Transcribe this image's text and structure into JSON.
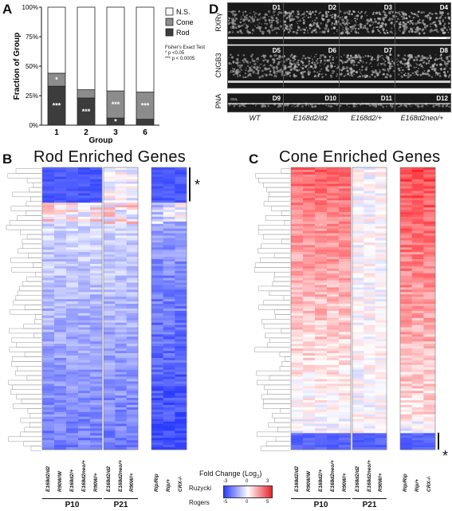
{
  "panels": {
    "a": "A",
    "b": "B",
    "c": "C",
    "d": "D"
  },
  "colors": {
    "ns": "#ffffff",
    "cone": "#8c8c8c",
    "rod": "#3c3c3c",
    "blue": "#2b3cff",
    "red": "#e8232a"
  },
  "chart_data": {
    "type": "bar",
    "stacked": true,
    "categories": [
      "1",
      "2",
      "3",
      "6"
    ],
    "xlabel": "Group",
    "ylabel": "Fraction of Group",
    "ytick_labels": [
      "0%",
      "25%",
      "50%",
      "75%",
      "100%"
    ],
    "ylim": [
      0,
      100
    ],
    "legend_position": "top-right",
    "series": [
      {
        "name": "Rod",
        "values": [
          33,
          23,
          6,
          5
        ]
      },
      {
        "name": "Cone",
        "values": [
          11,
          7,
          23,
          23
        ]
      },
      {
        "name": "N.S.",
        "values": [
          56,
          70,
          71,
          72
        ]
      }
    ],
    "annotations": [
      {
        "bar": 0,
        "segment": "Cone",
        "text": "*"
      },
      {
        "bar": 0,
        "segment": "Rod",
        "text": "***"
      },
      {
        "bar": 1,
        "segment": "Rod",
        "text": "***"
      },
      {
        "bar": 2,
        "segment": "Cone",
        "text": "***"
      },
      {
        "bar": 2,
        "segment": "Rod",
        "text": "*"
      },
      {
        "bar": 3,
        "segment": "Cone",
        "text": "***"
      }
    ],
    "stats_note": [
      "Fisher's Exact Test",
      "* p <0.05",
      "*** p < 0.0005"
    ]
  },
  "panel_d": {
    "rows": [
      "RXRγ",
      "CNGB3",
      "PNA"
    ],
    "genotypes": [
      "WT",
      "E168d2/d2",
      "E168d2/+",
      "E168d2neo/+"
    ],
    "tiles": [
      "D1",
      "D2",
      "D3",
      "D4",
      "D5",
      "D6",
      "D7",
      "D8",
      "D9",
      "D10",
      "D11",
      "D12"
    ],
    "onl": "ONL"
  },
  "panel_b": {
    "title": "Rod Enriched Genes",
    "asterisk": "*",
    "columns_p10": [
      "E168d2/d2",
      "R90W/W",
      "E168d2/+",
      "E168d2neo/+",
      "R90W/+"
    ],
    "columns_p21": [
      "E168d2/d2",
      "E168d2neo/+",
      "R90W/+"
    ],
    "columns_rogers": [
      "Rip/Rip",
      "Rip/+",
      "CRX-/-"
    ],
    "groups": [
      "P10",
      "P21"
    ]
  },
  "panel_c": {
    "title": "Cone Enriched Genes",
    "asterisk": "*",
    "columns_p10": [
      "E168d2/d2",
      "R90W/W",
      "E168d2/+",
      "E168d2neo/+",
      "R90W/+"
    ],
    "columns_p21": [
      "E168d2/d2",
      "E168d2neo/+",
      "R90W/+"
    ],
    "columns_rogers": [
      "Rip/Rip",
      "Rip/+",
      "CRX-/-"
    ],
    "groups": [
      "P10",
      "P21"
    ]
  },
  "legend": {
    "title": "Fold Change (Log",
    "title_sub": "2",
    "title_end": ")",
    "ruzycki": "Ruzycki",
    "rogers": "Rogers",
    "ruzycki_ticks": [
      "-3",
      "0",
      "3"
    ],
    "rogers_ticks": [
      "-5",
      "0",
      "5"
    ]
  }
}
